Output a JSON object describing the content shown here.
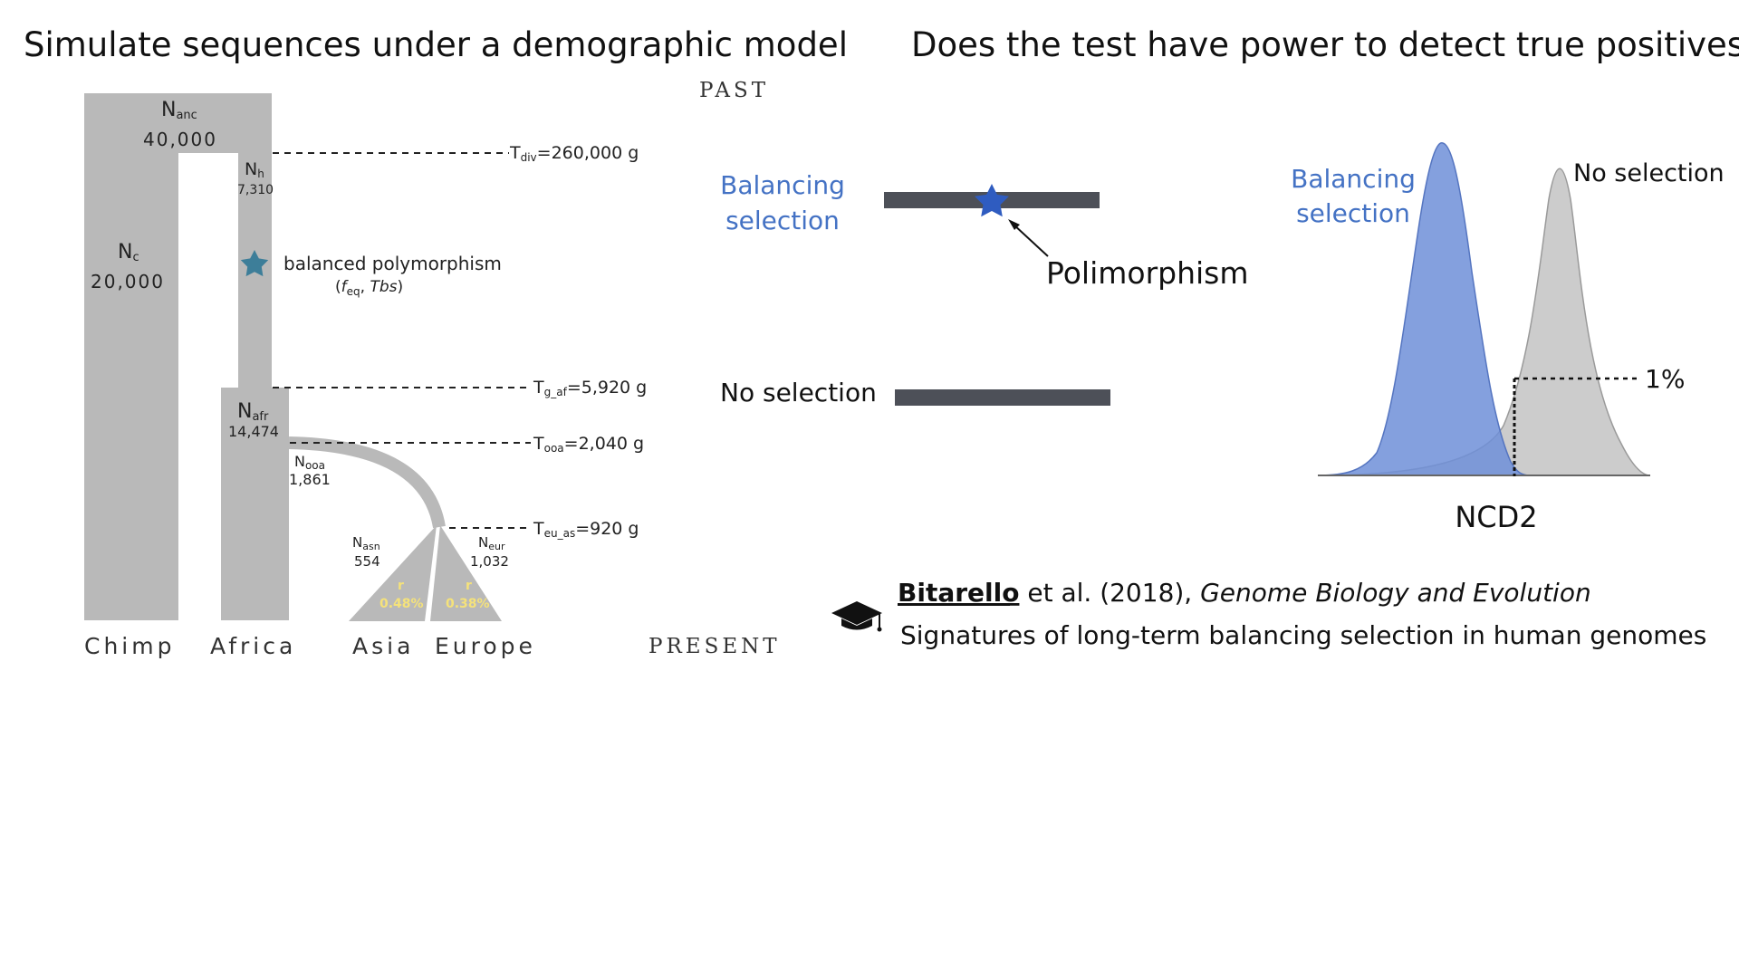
{
  "left": {
    "heading": "Simulate sequences under a demographic model",
    "past_label": "PAST",
    "present_label": "PRESENT",
    "populations": {
      "anc": {
        "sym": "N",
        "sub": "anc",
        "value": "40,000"
      },
      "c": {
        "sym": "N",
        "sub": "c",
        "value": "20,000"
      },
      "h": {
        "sym": "N",
        "sub": "h",
        "value": "7,310"
      },
      "afr": {
        "sym": "N",
        "sub": "afr",
        "value": "14,474"
      },
      "ooa": {
        "sym": "N",
        "sub": "ooa",
        "value": "1,861"
      },
      "asn": {
        "sym": "N",
        "sub": "asn",
        "value": "554"
      },
      "eur": {
        "sym": "N",
        "sub": "eur",
        "value": "1,032"
      }
    },
    "growth": {
      "asia": {
        "symbol": "r",
        "value": "0.48%"
      },
      "europe": {
        "symbol": "r",
        "value": "0.38%"
      }
    },
    "times": {
      "div": {
        "sym": "T",
        "sub": "div",
        "value": "=260,000 g"
      },
      "g_af": {
        "sym": "T",
        "sub": "g_af",
        "value": "=5,920 g"
      },
      "ooa": {
        "sym": "T",
        "sub": "ooa",
        "value": "=2,040 g"
      },
      "eu_as": {
        "sym": "T",
        "sub": "eu_as",
        "value": "=920 g"
      }
    },
    "balanced": {
      "label": "balanced polymorphism",
      "params_open": "(",
      "params_f": "f",
      "params_f_sub": "eq",
      "params_sep": ", ",
      "params_tbs": "Tbs",
      "params_close": ")"
    },
    "bottom_labels": [
      "Chimp",
      "Africa",
      "Asia",
      "Europe"
    ]
  },
  "right": {
    "heading": "Does the test have power to detect true positives?",
    "balancing_label_line1": "Balancing",
    "balancing_label_line2": "selection",
    "polymorphism_label": "Polimorphism",
    "no_selection_label": "No selection",
    "dist_balancing_line1": "Balancing",
    "dist_balancing_line2": "selection",
    "dist_no_selection": "No selection",
    "threshold_label": "1%",
    "axis_label": "NCD2"
  },
  "citation": {
    "author": "Bitarello",
    "rest": " et al. (2018), ",
    "journal": "Genome Biology and Evolution",
    "title": "Signatures of long-term balancing selection in human genomes"
  },
  "colors": {
    "blue_text": "#4472C4",
    "gray_block": "#B9B9B9",
    "gene_bar": "#4D5058",
    "dist_blue": "#6F8FD8",
    "dist_gray": "#C3C3C3",
    "growth_yellow": "#F5E27A",
    "star_teal": "#3D7E99",
    "star_blue": "#2F5CC0"
  },
  "icons": [
    "graduation-cap-icon",
    "star-icon"
  ]
}
